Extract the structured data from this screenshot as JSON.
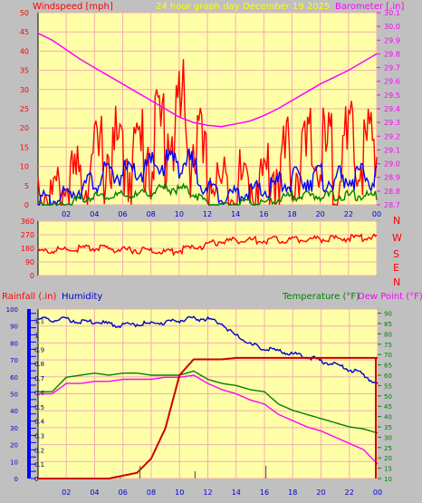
{
  "colors": {
    "background": "#c0c0c0",
    "plot_bg": "#ffffa8",
    "grid": "#f0b0b0",
    "wind_gust": "#ff0000",
    "wind_avg": "#0000ff",
    "wind_low": "#008000",
    "barometer": "#ff00ff",
    "direction": "#ff0000",
    "rain": "#cc0000",
    "humidity": "#0000cc",
    "temperature": "#008000",
    "dewpoint": "#ff00ff",
    "title": "#ffff00",
    "rain_axis_bar": "#0000ff"
  },
  "header": {
    "wind_label": "Windspeed [mph]",
    "title": "24 hour graph day   December 19 2025",
    "baro_label": "Barometer [.in]"
  },
  "bottom_header": {
    "rain_label": "Rainfall (.in)",
    "humidity_label": "Humidity",
    "temp_label": "Temperature (°F)",
    "dew_label": "Dew Point (°F)"
  },
  "compass": [
    "N",
    "W",
    "S",
    "E",
    "N"
  ],
  "x_ticks": [
    "02",
    "04",
    "06",
    "08",
    "10",
    "12",
    "14",
    "16",
    "18",
    "20",
    "22",
    "00"
  ],
  "chart_data": [
    {
      "type": "line",
      "title": "24 hour graph day   December 19 2025",
      "xlabel": "hour",
      "ylabel": "Windspeed [mph]",
      "y2label": "Barometer [.in]",
      "ylim": [
        0,
        50
      ],
      "y2lim": [
        28.7,
        30.1
      ],
      "yticks": [
        0,
        5,
        10,
        15,
        20,
        25,
        30,
        35,
        40,
        45,
        50
      ],
      "y2ticks": [
        "28.7",
        "28.8",
        "28.9",
        "29.0",
        "29.1",
        "29.2",
        "29.3",
        "29.4",
        "29.5",
        "29.6",
        "29.7",
        "29.8",
        "29.9",
        "30.0",
        "30.1"
      ],
      "x": [
        0,
        1,
        2,
        3,
        4,
        5,
        6,
        7,
        8,
        9,
        10,
        11,
        12,
        13,
        14,
        15,
        16,
        17,
        18,
        19,
        20,
        21,
        22,
        23,
        24
      ],
      "series": [
        {
          "name": "Windspeed",
          "role": "gust",
          "values": [
            10,
            6,
            9,
            12,
            17,
            21,
            19,
            20,
            24,
            28,
            33,
            25,
            13,
            9,
            10,
            11,
            12,
            16,
            18,
            19,
            20,
            18,
            20,
            21,
            20
          ]
        },
        {
          "name": "Windspeed",
          "role": "average",
          "values": [
            3,
            2,
            4,
            6,
            8,
            10,
            10,
            10,
            12,
            13,
            14,
            12,
            6,
            4,
            4,
            5,
            5,
            7,
            8,
            9,
            9,
            8,
            9,
            9,
            9
          ]
        },
        {
          "name": "Windspeed",
          "role": "low",
          "values": [
            1,
            0,
            1,
            2,
            3,
            3,
            3,
            3,
            4,
            5,
            5,
            4,
            1,
            0,
            1,
            1,
            1,
            2,
            3,
            3,
            3,
            3,
            3,
            3,
            3
          ]
        },
        {
          "name": "Barometer",
          "axis": "right",
          "values": [
            29.95,
            29.9,
            29.83,
            29.76,
            29.7,
            29.64,
            29.58,
            29.52,
            29.46,
            29.4,
            29.34,
            29.3,
            29.28,
            29.27,
            29.29,
            29.31,
            29.35,
            29.4,
            29.46,
            29.52,
            29.58,
            29.63,
            29.68,
            29.74,
            29.8
          ]
        }
      ]
    },
    {
      "type": "scatter",
      "ylabel": "Wind Direction",
      "ylim": [
        0,
        360
      ],
      "yticks": [
        0,
        90,
        180,
        270,
        360
      ],
      "x": [
        0,
        1,
        2,
        3,
        4,
        5,
        6,
        7,
        8,
        9,
        10,
        11,
        12,
        13,
        14,
        15,
        16,
        17,
        18,
        19,
        20,
        21,
        22,
        23,
        24
      ],
      "series": [
        {
          "name": "Wind Direction",
          "values": [
            170,
            176,
            183,
            190,
            193,
            188,
            182,
            181,
            176,
            166,
            178,
            195,
            215,
            240,
            245,
            246,
            244,
            250,
            250,
            255,
            253,
            257,
            258,
            262,
            266
          ]
        }
      ]
    },
    {
      "type": "line",
      "ylim": [
        0,
        100
      ],
      "yticks": [
        0,
        10,
        20,
        30,
        40,
        50,
        60,
        70,
        80,
        90,
        100
      ],
      "rain_ticks": [
        "0",
        "0.05",
        "0.1",
        "0.15",
        "0.2",
        "0.25",
        "0.3",
        "0.35",
        "0.4",
        "0.45",
        "0.5",
        "0.55",
        "0.6",
        "0.65",
        "0.7",
        "0.75",
        "0.8",
        "0.85",
        "0.9",
        "0.95",
        "1",
        "1.05",
        "1.1",
        "1.15"
      ],
      "rain_lim": [
        0,
        1.18
      ],
      "temp_ticks": [
        "10",
        "15",
        "20",
        "25",
        "30",
        "35",
        "40",
        "45",
        "50",
        "55",
        "60",
        "65",
        "70",
        "75",
        "80",
        "85",
        "90"
      ],
      "temp_lim": [
        10,
        92
      ],
      "x": [
        0,
        1,
        2,
        3,
        4,
        5,
        6,
        7,
        8,
        9,
        10,
        11,
        12,
        13,
        14,
        15,
        16,
        17,
        18,
        19,
        20,
        21,
        22,
        23,
        24
      ],
      "series": [
        {
          "name": "Humidity",
          "axis": "humidity",
          "values": [
            95,
            94,
            95,
            93,
            93,
            92,
            91,
            92,
            92,
            93,
            94,
            95,
            95,
            92,
            85,
            80,
            77,
            76,
            74,
            73,
            70,
            68,
            65,
            62,
            56
          ]
        },
        {
          "name": "Rainfall",
          "axis": "rain",
          "values": [
            0,
            0,
            0,
            0,
            0,
            0,
            0.02,
            0.04,
            0.14,
            0.35,
            0.72,
            0.83,
            0.83,
            0.83,
            0.84,
            0.84,
            0.84,
            0.84,
            0.84,
            0.84,
            0.84,
            0.84,
            0.84,
            0.84,
            0.84
          ]
        },
        {
          "name": "Temperature",
          "axis": "temp",
          "values": [
            52,
            52,
            59,
            60,
            61,
            60,
            61,
            61,
            60,
            60,
            60,
            62,
            58,
            56,
            55,
            53,
            52,
            46,
            43,
            41,
            39,
            37,
            35,
            34,
            32
          ]
        },
        {
          "name": "Dew Point",
          "axis": "temp",
          "values": [
            51,
            51,
            56,
            56,
            57,
            57,
            58,
            58,
            58,
            59,
            59,
            60,
            56,
            53,
            51,
            48,
            46,
            41,
            38,
            35,
            33,
            30,
            27,
            24,
            17
          ]
        }
      ]
    }
  ]
}
